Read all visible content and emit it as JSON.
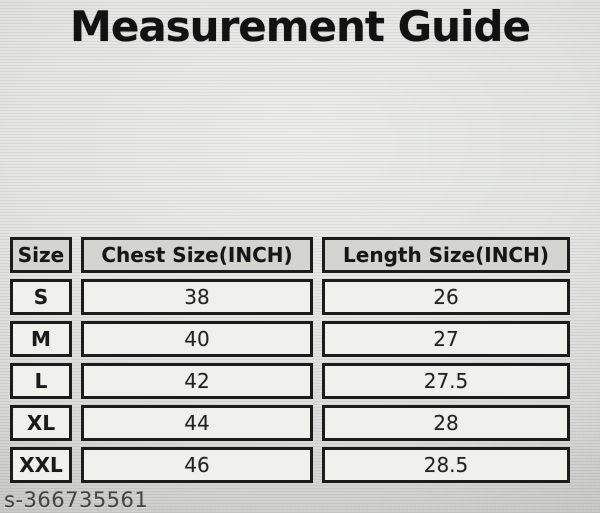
{
  "page": {
    "title": "Measurement Guide",
    "watermark": "s-366735561"
  },
  "size_chart": {
    "columns": [
      "Size",
      "Chest Size(INCH)",
      "Length Size(INCH)"
    ],
    "rows": [
      {
        "size": "S",
        "chest": "38",
        "length": "26"
      },
      {
        "size": "M",
        "chest": "40",
        "length": "27"
      },
      {
        "size": "L",
        "chest": "42",
        "length": "27.5"
      },
      {
        "size": "XL",
        "chest": "44",
        "length": "28"
      },
      {
        "size": "XXL",
        "chest": "46",
        "length": "28.5"
      }
    ]
  },
  "chart_data": {
    "type": "table",
    "title": "Measurement Guide",
    "columns": [
      "Size",
      "Chest Size(INCH)",
      "Length Size(INCH)"
    ],
    "rows": [
      [
        "S",
        38,
        26
      ],
      [
        "M",
        40,
        27
      ],
      [
        "L",
        42,
        27.5
      ],
      [
        "XL",
        44,
        28
      ],
      [
        "XXL",
        46,
        28.5
      ]
    ]
  },
  "colors": {
    "page_background": "#e2e3e1",
    "table_border": "#1c1c1c",
    "header_cell_background": "#d4d4d1",
    "data_cell_background": "#f0f0ed",
    "title_text": "#121212",
    "watermark_text": "#454545"
  }
}
